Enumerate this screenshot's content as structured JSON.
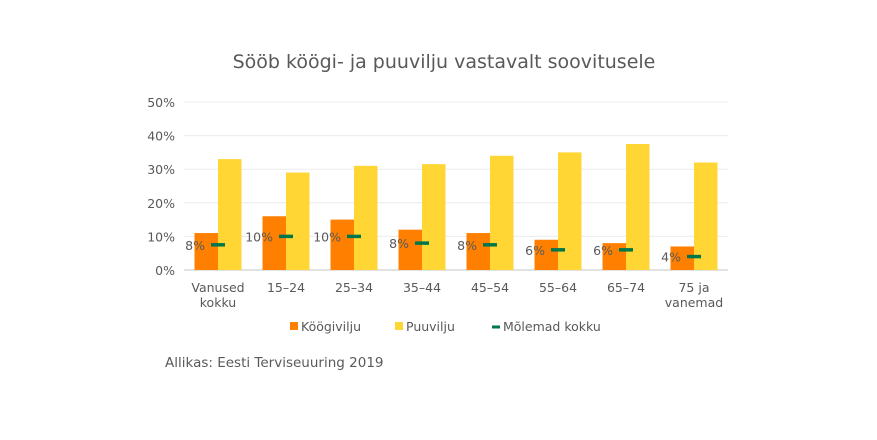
{
  "chart_data": {
    "type": "bar",
    "title": "Sööb köögi- ja puuvilju vastavalt soovitusele",
    "categories": [
      [
        "Vanused",
        "kokku"
      ],
      [
        "15–24"
      ],
      [
        "25–34"
      ],
      [
        "35–44"
      ],
      [
        "45–54"
      ],
      [
        "55–64"
      ],
      [
        "65–74"
      ],
      [
        "75 ja",
        "vanemad"
      ]
    ],
    "ylim": [
      0,
      50
    ],
    "yticks": [
      "0%",
      "10%",
      "20%",
      "30%",
      "40%",
      "50%"
    ],
    "grid": true,
    "legend_position": "bottom",
    "series": [
      {
        "name": "Köögivilju",
        "type": "bar",
        "color": "#FF8000",
        "values": [
          11,
          16,
          15,
          12,
          11,
          9,
          8,
          7
        ]
      },
      {
        "name": "Puuvilju",
        "type": "bar",
        "color": "#FFD633",
        "values": [
          33,
          29,
          31,
          31.5,
          34,
          35,
          37.5,
          32
        ]
      },
      {
        "name": "Mõlemad kokku",
        "type": "marker",
        "color": "#00774A",
        "values": [
          7.5,
          10,
          10,
          8,
          7.5,
          6,
          6,
          4
        ],
        "labels": [
          "8%",
          "10%",
          "10%",
          "8%",
          "8%",
          "6%",
          "6%",
          "4%"
        ]
      }
    ]
  },
  "source": "Allikas: Eesti Terviseuuring 2019"
}
